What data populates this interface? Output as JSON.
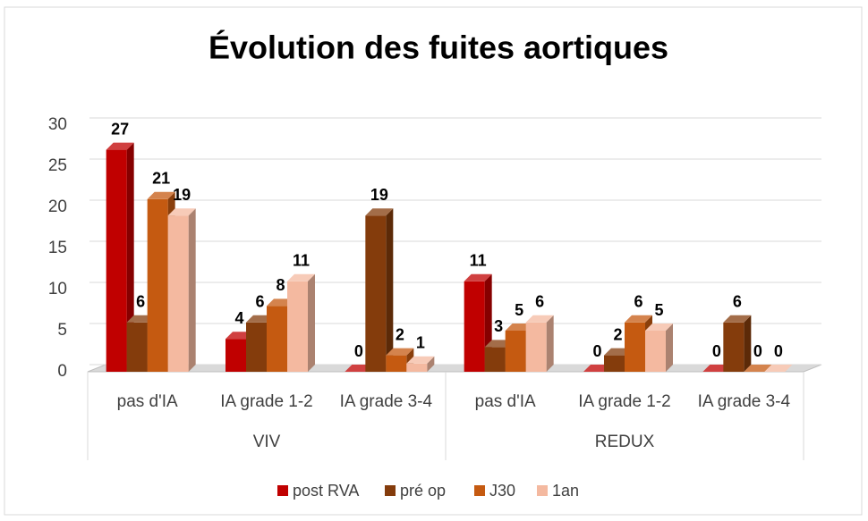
{
  "chart_data": {
    "type": "bar3d",
    "title": "Évolution des fuites aortiques",
    "groups": [
      {
        "name": "VIV",
        "categories": [
          "pas d'IA",
          "IA grade 1-2",
          "IA grade 3-4"
        ]
      },
      {
        "name": "REDUX",
        "categories": [
          "pas d'IA",
          "IA grade 1-2",
          "IA grade 3-4"
        ]
      }
    ],
    "series": [
      {
        "name": "post RVA",
        "color": "#c00000",
        "values": [
          27,
          4,
          0,
          11,
          0,
          0
        ]
      },
      {
        "name": "pré op",
        "color": "#843c0c",
        "values": [
          6,
          6,
          19,
          3,
          2,
          6
        ]
      },
      {
        "name": "J30",
        "color": "#c55a11",
        "values": [
          21,
          8,
          2,
          5,
          6,
          0
        ]
      },
      {
        "name": "1an",
        "color": "#f4b9a0",
        "values": [
          19,
          11,
          1,
          6,
          5,
          0
        ]
      }
    ],
    "ylim": [
      0,
      30
    ],
    "yticks": [
      0,
      5,
      10,
      15,
      20,
      25,
      30
    ],
    "grid": true,
    "legend": "bottom"
  }
}
